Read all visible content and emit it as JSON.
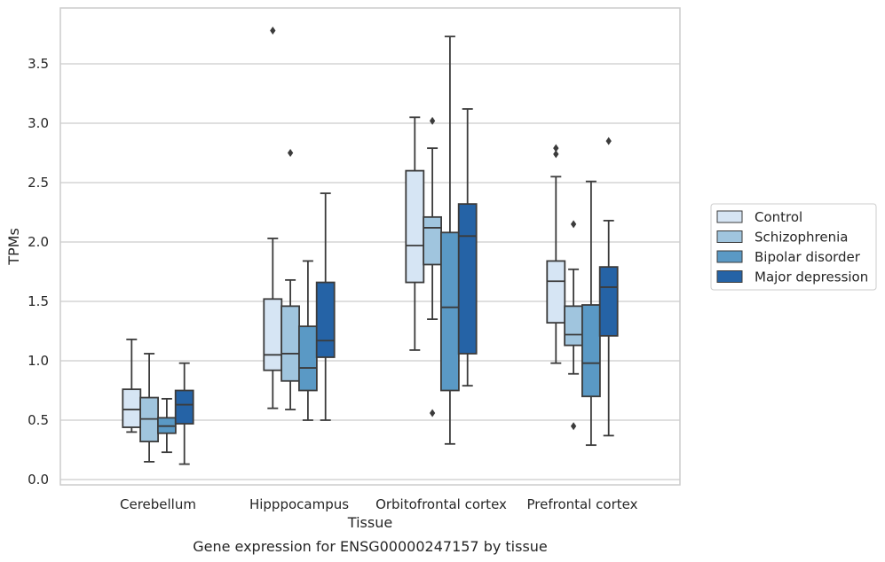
{
  "chart_data": {
    "type": "box",
    "xlabel": "Tissue",
    "ylabel": "TPMs",
    "caption": "Gene expression for ENSG00000247157 by tissue",
    "ylim": [
      -0.03,
      3.98
    ],
    "yticks": [
      0.0,
      0.5,
      1.0,
      1.5,
      2.0,
      2.5,
      3.0,
      3.5
    ],
    "ytick_labels": [
      "0.0",
      "0.5",
      "1.0",
      "1.5",
      "2.0",
      "2.5",
      "3.0",
      "3.5"
    ],
    "grid": "horizontal",
    "legend_position": "right",
    "categories": [
      "Cerebellum",
      "Hipppocampus",
      "Orbitofrontal cortex",
      "Prefrontal cortex"
    ],
    "series": [
      {
        "name": "Control",
        "color": "#d6e5f4",
        "boxes": [
          {
            "whislo": 0.4,
            "q1": 0.44,
            "med": 0.59,
            "q3": 0.76,
            "whishi": 1.18,
            "fliers": []
          },
          {
            "whislo": 0.6,
            "q1": 0.92,
            "med": 1.05,
            "q3": 1.52,
            "whishi": 2.03,
            "fliers": [
              3.78
            ]
          },
          {
            "whislo": 1.09,
            "q1": 1.66,
            "med": 1.97,
            "q3": 2.6,
            "whishi": 3.05,
            "fliers": []
          },
          {
            "whislo": 0.98,
            "q1": 1.32,
            "med": 1.67,
            "q3": 1.84,
            "whishi": 2.55,
            "fliers": [
              2.74,
              2.79
            ]
          }
        ]
      },
      {
        "name": "Schizophrenia",
        "color": "#a0c5de",
        "boxes": [
          {
            "whislo": 0.15,
            "q1": 0.32,
            "med": 0.51,
            "q3": 0.69,
            "whishi": 1.06,
            "fliers": []
          },
          {
            "whislo": 0.59,
            "q1": 0.83,
            "med": 1.06,
            "q3": 1.46,
            "whishi": 1.68,
            "fliers": [
              2.75
            ]
          },
          {
            "whislo": 1.35,
            "q1": 1.81,
            "med": 2.12,
            "q3": 2.21,
            "whishi": 2.79,
            "fliers": [
              3.02,
              0.56
            ]
          },
          {
            "whislo": 0.89,
            "q1": 1.13,
            "med": 1.22,
            "q3": 1.46,
            "whishi": 1.77,
            "fliers": [
              2.15,
              0.45
            ]
          }
        ]
      },
      {
        "name": "Bipolar disorder",
        "color": "#5a99c5",
        "boxes": [
          {
            "whislo": 0.23,
            "q1": 0.39,
            "med": 0.45,
            "q3": 0.52,
            "whishi": 0.68,
            "fliers": []
          },
          {
            "whislo": 0.5,
            "q1": 0.75,
            "med": 0.94,
            "q3": 1.29,
            "whishi": 1.84,
            "fliers": []
          },
          {
            "whislo": 0.3,
            "q1": 0.75,
            "med": 1.45,
            "q3": 2.08,
            "whishi": 3.73,
            "fliers": []
          },
          {
            "whislo": 0.29,
            "q1": 0.7,
            "med": 0.98,
            "q3": 1.47,
            "whishi": 2.51,
            "fliers": []
          }
        ]
      },
      {
        "name": "Major depression",
        "color": "#2563a6",
        "boxes": [
          {
            "whislo": 0.13,
            "q1": 0.47,
            "med": 0.63,
            "q3": 0.75,
            "whishi": 0.98,
            "fliers": []
          },
          {
            "whislo": 0.5,
            "q1": 1.03,
            "med": 1.17,
            "q3": 1.66,
            "whishi": 2.41,
            "fliers": []
          },
          {
            "whislo": 0.79,
            "q1": 1.06,
            "med": 2.05,
            "q3": 2.32,
            "whishi": 3.12,
            "fliers": []
          },
          {
            "whislo": 0.37,
            "q1": 1.21,
            "med": 1.62,
            "q3": 1.79,
            "whishi": 2.18,
            "fliers": [
              2.85
            ]
          }
        ]
      }
    ]
  },
  "colors": {
    "frame": "#cccccc",
    "grid": "#cccccc",
    "line": "#3b3b3b",
    "text": "#262626"
  }
}
